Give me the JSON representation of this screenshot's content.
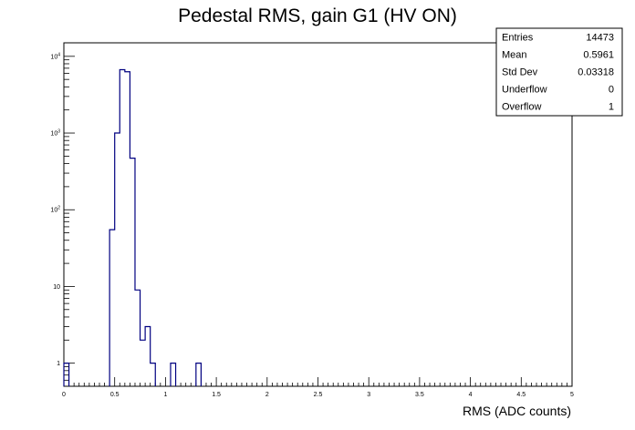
{
  "chart_data": {
    "type": "bar",
    "style": "step-histogram",
    "title": "Pedestal RMS, gain G1 (HV ON)",
    "xlabel": "RMS (ADC counts)",
    "ylabel": "",
    "xlim": [
      0,
      5
    ],
    "ylim": [
      0.5,
      15000
    ],
    "yscale": "log",
    "bin_width": 0.05,
    "x_ticks": [
      "0",
      "0.5",
      "1",
      "1.5",
      "2",
      "2.5",
      "3",
      "3.5",
      "4",
      "4.5",
      "5"
    ],
    "y_ticks": [
      {
        "value": 1,
        "base": "1",
        "exp": ""
      },
      {
        "value": 10,
        "base": "10",
        "exp": ""
      },
      {
        "value": 100,
        "base": "10",
        "exp": "2"
      },
      {
        "value": 1000,
        "base": "10",
        "exp": "3"
      },
      {
        "value": 10000,
        "base": "10",
        "exp": "4"
      }
    ],
    "bins": [
      {
        "x": 0.0,
        "value": 1
      },
      {
        "x": 0.45,
        "value": 55
      },
      {
        "x": 0.5,
        "value": 1000
      },
      {
        "x": 0.55,
        "value": 6700
      },
      {
        "x": 0.6,
        "value": 6300
      },
      {
        "x": 0.65,
        "value": 470
      },
      {
        "x": 0.7,
        "value": 9
      },
      {
        "x": 0.75,
        "value": 2
      },
      {
        "x": 0.8,
        "value": 3
      },
      {
        "x": 0.85,
        "value": 1
      },
      {
        "x": 1.05,
        "value": 1
      },
      {
        "x": 1.3,
        "value": 1
      }
    ],
    "line_color": "#000080",
    "grid": false,
    "legend": "none"
  },
  "stats_box": {
    "name": "",
    "rows": [
      {
        "label": "Entries",
        "value": "14473"
      },
      {
        "label": "Mean",
        "value": "0.5961"
      },
      {
        "label": "Std Dev",
        "value": "0.03318"
      },
      {
        "label": "Underflow",
        "value": "0"
      },
      {
        "label": "Overflow",
        "value": "1"
      }
    ]
  }
}
